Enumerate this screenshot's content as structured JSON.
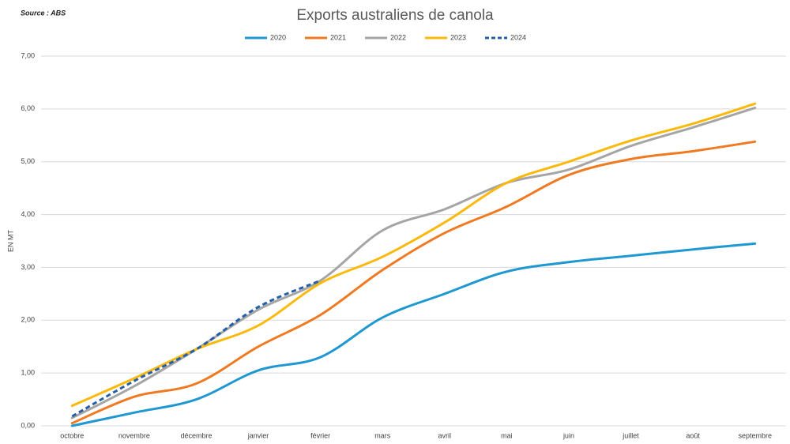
{
  "chart_data": {
    "type": "line",
    "title": "Exports australiens de canola",
    "source": "Source : ABS",
    "y_label": "EN MT",
    "categories": [
      "octobre",
      "novembre",
      "décembre",
      "janvier",
      "février",
      "mars",
      "avril",
      "mai",
      "juin",
      "juillet",
      "août",
      "septembre"
    ],
    "series": [
      {
        "name": "2020",
        "color": "#1f98d1",
        "line_style": "solid",
        "values": [
          0.0,
          0.25,
          0.5,
          1.05,
          1.3,
          2.05,
          2.5,
          2.92,
          3.1,
          3.22,
          3.34,
          3.45
        ]
      },
      {
        "name": "2021",
        "color": "#f07a22",
        "line_style": "solid",
        "values": [
          0.05,
          0.55,
          0.8,
          1.5,
          2.1,
          2.95,
          3.65,
          4.15,
          4.75,
          5.05,
          5.2,
          5.38
        ]
      },
      {
        "name": "2022",
        "color": "#a5a5a5",
        "line_style": "solid",
        "values": [
          0.15,
          0.75,
          1.45,
          2.2,
          2.75,
          3.7,
          4.1,
          4.6,
          4.85,
          5.3,
          5.65,
          6.02
        ]
      },
      {
        "name": "2023",
        "color": "#fbb90c",
        "line_style": "solid",
        "values": [
          0.38,
          0.9,
          1.45,
          1.9,
          2.7,
          3.2,
          3.85,
          4.6,
          5.0,
          5.4,
          5.72,
          6.1
        ]
      },
      {
        "name": "2024",
        "color": "#255fa8",
        "line_style": "dashed",
        "values": [
          0.18,
          0.85,
          1.45,
          2.25,
          2.75,
          null,
          null,
          null,
          null,
          null,
          null,
          null
        ]
      }
    ],
    "ylim": [
      0,
      7
    ],
    "yticks": [
      {
        "value": 0,
        "label": "0,00"
      },
      {
        "value": 1,
        "label": "1,00"
      },
      {
        "value": 2,
        "label": "2,00"
      },
      {
        "value": 3,
        "label": "3,00"
      },
      {
        "value": 4,
        "label": "4,00"
      },
      {
        "value": 5,
        "label": "5,00"
      },
      {
        "value": 6,
        "label": "6,00"
      },
      {
        "value": 7,
        "label": "7,00"
      }
    ],
    "grid": true
  }
}
